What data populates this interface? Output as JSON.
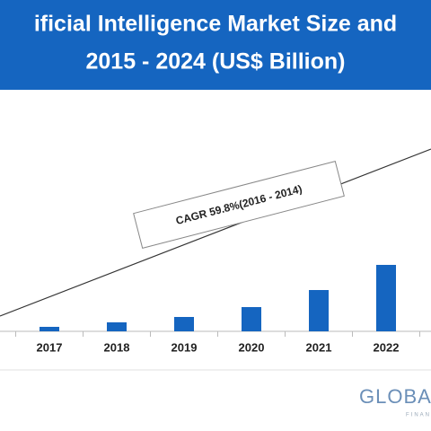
{
  "chart_data": {
    "type": "bar",
    "title_lines": [
      "ificial Intelligence Market Size and",
      "2015 - 2024 (US$ Billion)"
    ],
    "categories": [
      "2017",
      "2018",
      "2019",
      "2020",
      "2021",
      "2022"
    ],
    "values": [
      5,
      10,
      16,
      27,
      46,
      74
    ],
    "color": "#1565c0",
    "annotation": "CAGR 59.8%(2016 - 2014)",
    "logo": "GLOBAL",
    "logo_sub": "FINAN"
  }
}
